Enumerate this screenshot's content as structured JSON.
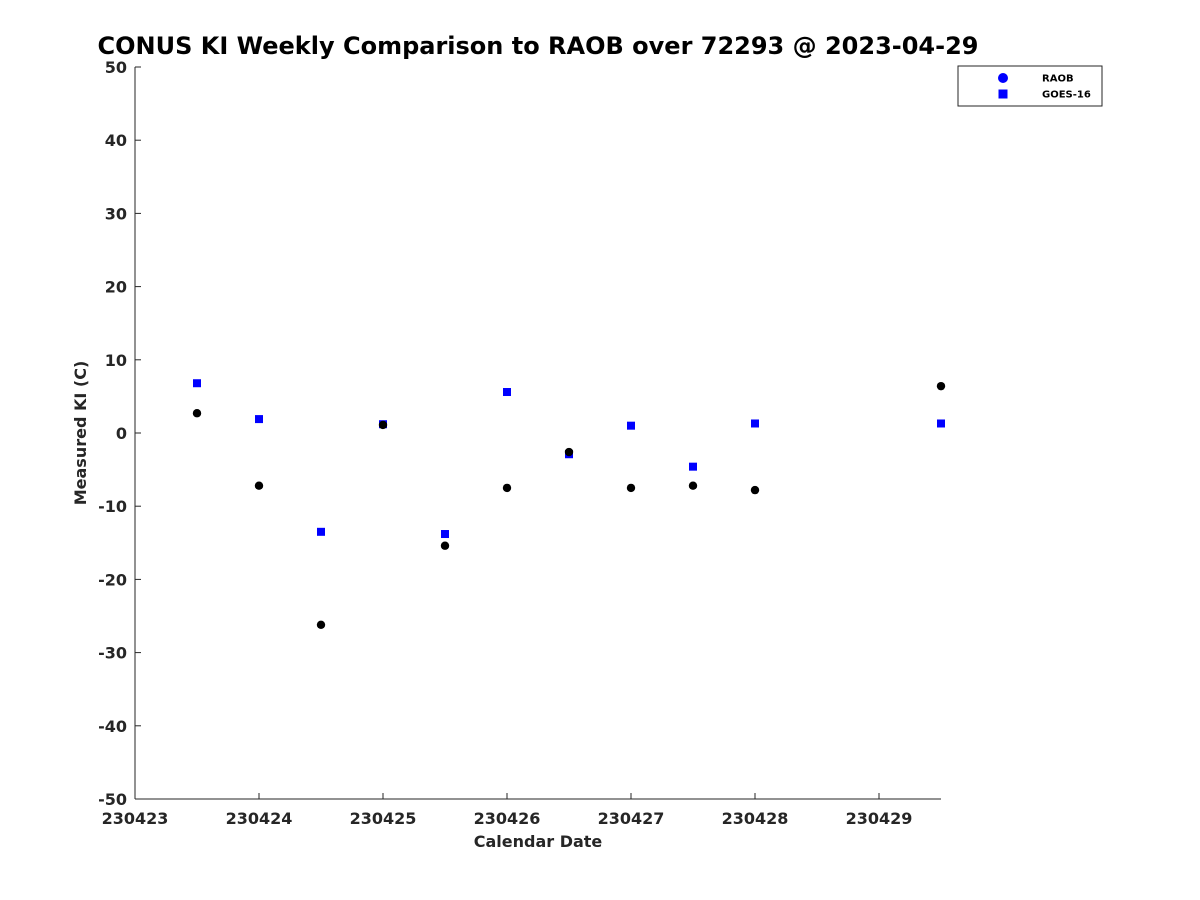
{
  "chart_data": {
    "type": "scatter",
    "title": "CONUS KI Weekly Comparison to RAOB over 72293 @ 2023-04-29",
    "xlabel": "Calendar Date",
    "ylabel": "Measured KI (C)",
    "xlim": [
      "2023-04-23 00:00",
      "2023-04-29 12:00"
    ],
    "ylim": [
      -50,
      50
    ],
    "x_tick_dates": [
      "2023-04-23",
      "2023-04-24",
      "2023-04-25",
      "2023-04-26",
      "2023-04-27",
      "2023-04-28",
      "2023-04-29"
    ],
    "x_tick_labels": [
      "230423",
      "230424",
      "230425",
      "230426",
      "230427",
      "230428",
      "230429"
    ],
    "y_ticks": [
      50,
      40,
      30,
      20,
      10,
      0,
      -10,
      -20,
      -30,
      -40,
      -50
    ],
    "y_tick_labels": [
      "50",
      "40",
      "30",
      "20",
      "10",
      "0",
      "-10",
      "-20",
      "-30",
      "-40",
      "-50"
    ],
    "grid": false,
    "legend_position": "top-right",
    "series": [
      {
        "name": "RAOB",
        "marker": "circle",
        "color": "#000000",
        "points": [
          {
            "x": "2023-04-23 12:00",
            "y": 2.7
          },
          {
            "x": "2023-04-24 00:00",
            "y": -7.2
          },
          {
            "x": "2023-04-24 12:00",
            "y": -26.2
          },
          {
            "x": "2023-04-25 00:00",
            "y": 1.1
          },
          {
            "x": "2023-04-25 12:00",
            "y": -15.4
          },
          {
            "x": "2023-04-26 00:00",
            "y": -7.5
          },
          {
            "x": "2023-04-26 12:00",
            "y": -2.6
          },
          {
            "x": "2023-04-27 00:00",
            "y": -7.5
          },
          {
            "x": "2023-04-27 12:00",
            "y": -7.2
          },
          {
            "x": "2023-04-28 00:00",
            "y": -7.8
          },
          {
            "x": "2023-04-29 12:00",
            "y": 6.4
          }
        ]
      },
      {
        "name": "GOES-16",
        "marker": "square",
        "color": "#0000ff",
        "points": [
          {
            "x": "2023-04-23 12:00",
            "y": 6.8
          },
          {
            "x": "2023-04-24 00:00",
            "y": 1.9
          },
          {
            "x": "2023-04-24 12:00",
            "y": -13.5
          },
          {
            "x": "2023-04-25 00:00",
            "y": 1.2
          },
          {
            "x": "2023-04-25 12:00",
            "y": -13.8
          },
          {
            "x": "2023-04-26 00:00",
            "y": 5.6
          },
          {
            "x": "2023-04-26 12:00",
            "y": -2.9
          },
          {
            "x": "2023-04-27 00:00",
            "y": 1.0
          },
          {
            "x": "2023-04-27 12:00",
            "y": -4.6
          },
          {
            "x": "2023-04-28 00:00",
            "y": 1.3
          },
          {
            "x": "2023-04-29 12:00",
            "y": 1.3
          }
        ]
      }
    ]
  }
}
